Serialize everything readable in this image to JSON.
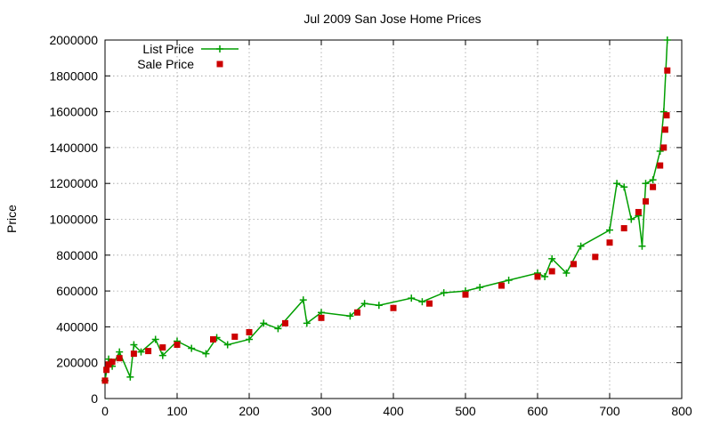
{
  "chart_data": {
    "type": "line",
    "title": "Jul 2009 San Jose Home Prices",
    "xlabel": "",
    "ylabel": "Price",
    "xlim": [
      0,
      800
    ],
    "ylim": [
      0,
      2000000
    ],
    "xticks": [
      "0",
      "100",
      "200",
      "300",
      "400",
      "500",
      "600",
      "700",
      "800"
    ],
    "yticks": [
      "0",
      "200000",
      "400000",
      "600000",
      "800000",
      "1000000",
      "1200000",
      "1400000",
      "1600000",
      "1800000",
      "2000000"
    ],
    "grid": true,
    "legend_position": "top-left",
    "series": [
      {
        "name": "List Price",
        "marker": "plus",
        "color": "#009e00",
        "x": [
          0,
          5,
          10,
          20,
          35,
          40,
          50,
          70,
          80,
          100,
          120,
          140,
          155,
          170,
          200,
          220,
          240,
          275,
          280,
          300,
          340,
          360,
          380,
          425,
          440,
          470,
          500,
          520,
          560,
          600,
          610,
          620,
          640,
          660,
          700,
          710,
          720,
          730,
          740,
          745,
          750,
          760,
          770,
          775,
          780
        ],
        "values": [
          100000,
          220000,
          180000,
          260000,
          120000,
          300000,
          260000,
          330000,
          240000,
          320000,
          280000,
          250000,
          340000,
          300000,
          330000,
          420000,
          390000,
          550000,
          420000,
          480000,
          460000,
          530000,
          520000,
          560000,
          540000,
          590000,
          600000,
          620000,
          660000,
          700000,
          680000,
          780000,
          700000,
          850000,
          940000,
          1200000,
          1180000,
          1000000,
          1020000,
          850000,
          1200000,
          1220000,
          1380000,
          1600000,
          2000000
        ]
      },
      {
        "name": "Sale Price",
        "marker": "square",
        "color": "#cc0000",
        "x": [
          0,
          2,
          5,
          10,
          20,
          40,
          60,
          80,
          100,
          150,
          180,
          200,
          250,
          300,
          350,
          400,
          450,
          500,
          550,
          600,
          620,
          650,
          680,
          700,
          720,
          740,
          750,
          760,
          770,
          775,
          777,
          779,
          780
        ],
        "values": [
          100000,
          160000,
          190000,
          205000,
          225000,
          250000,
          265000,
          285000,
          300000,
          330000,
          345000,
          370000,
          420000,
          450000,
          480000,
          505000,
          530000,
          580000,
          630000,
          680000,
          710000,
          750000,
          790000,
          870000,
          950000,
          1040000,
          1100000,
          1180000,
          1300000,
          1400000,
          1500000,
          1580000,
          1830000
        ]
      }
    ]
  }
}
